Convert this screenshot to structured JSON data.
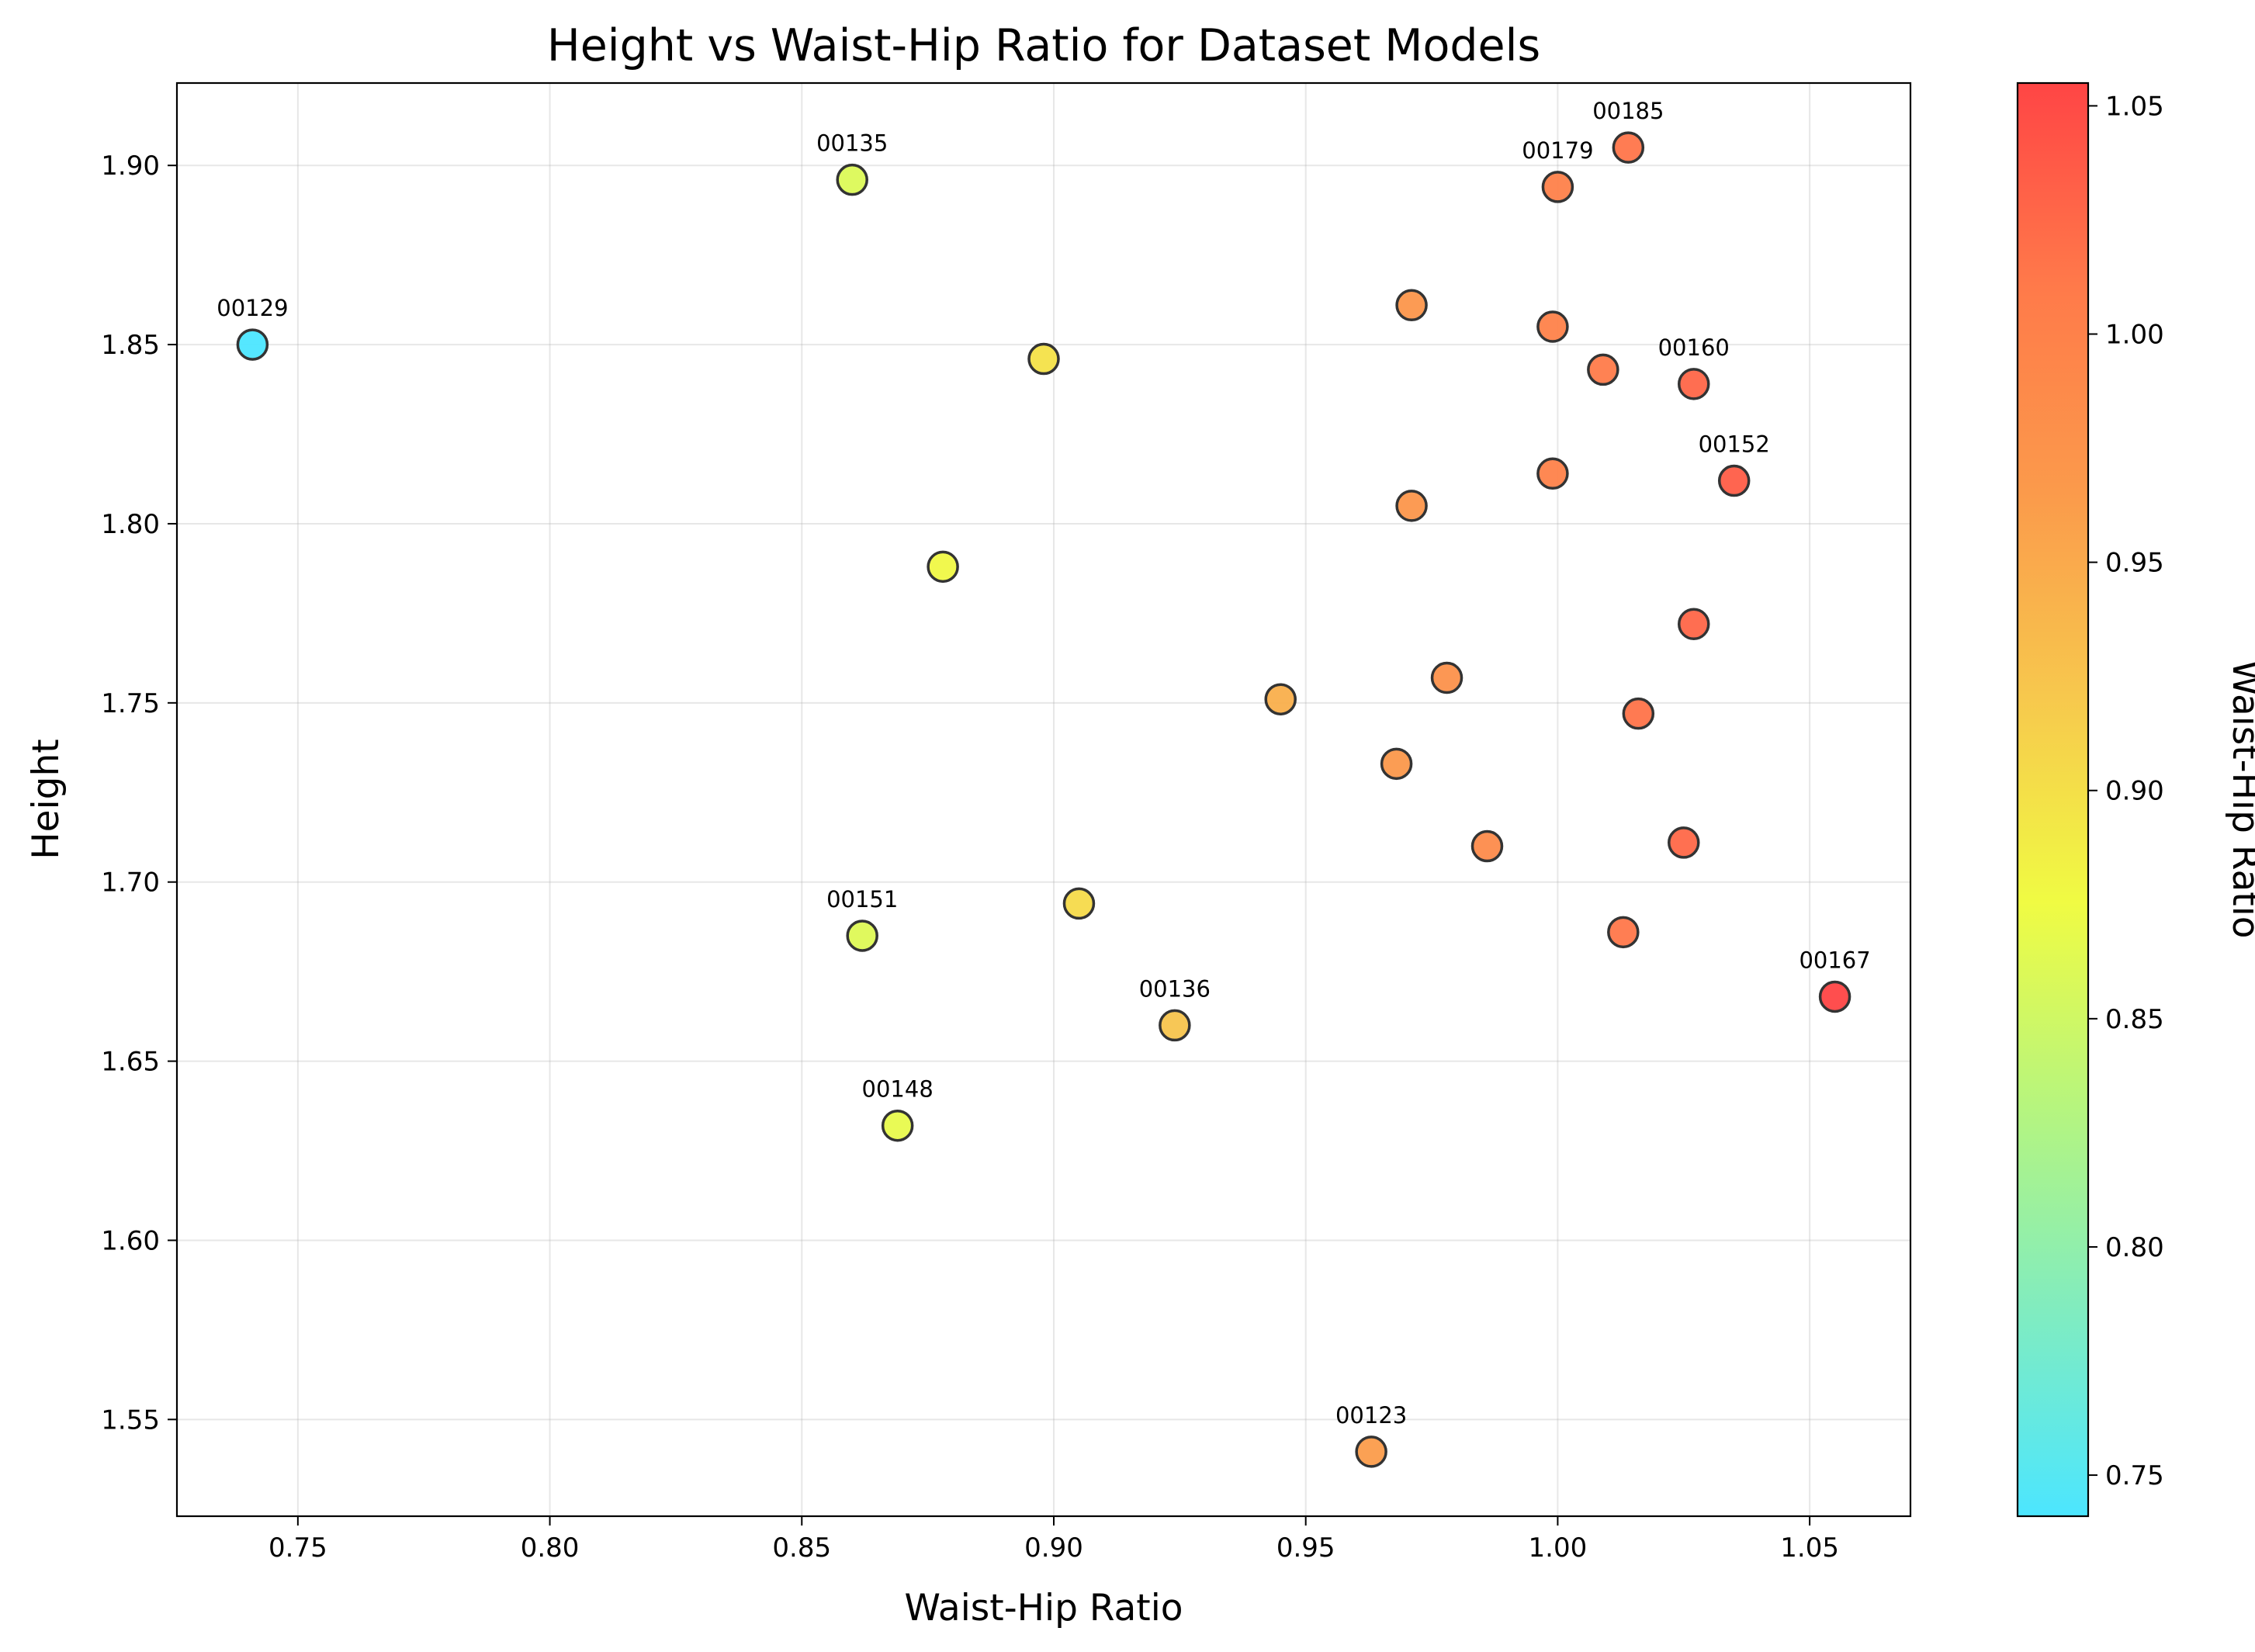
{
  "chart_data": {
    "type": "scatter",
    "title": "Height vs Waist-Hip Ratio for Dataset Models",
    "xlabel": "Waist-Hip Ratio",
    "ylabel": "Height",
    "colorbar_label": "Waist-Hip Ratio",
    "xlim": [
      0.726,
      1.07
    ],
    "ylim": [
      1.523,
      1.923
    ],
    "x_ticks": [
      "0.75",
      "0.80",
      "0.85",
      "0.90",
      "0.95",
      "1.00",
      "1.05"
    ],
    "y_ticks": [
      "1.55",
      "1.60",
      "1.65",
      "1.70",
      "1.75",
      "1.80",
      "1.85",
      "1.90"
    ],
    "colorbar_ticks": [
      "0.75",
      "0.80",
      "0.85",
      "0.90",
      "0.95",
      "1.00",
      "1.05"
    ],
    "color_range": [
      0.741,
      1.055
    ],
    "colormap_stops": [
      "#4ce6ff",
      "#80ecc0",
      "#b6f57e",
      "#f0fb43",
      "#f7c84d",
      "#fb9a4b",
      "#ff7a4a",
      "#ff4545"
    ],
    "grid": true,
    "points": [
      {
        "x": 0.741,
        "y": 1.85,
        "label": "00129"
      },
      {
        "x": 0.86,
        "y": 1.896,
        "label": "00135"
      },
      {
        "x": 1.014,
        "y": 1.905,
        "label": "00185"
      },
      {
        "x": 1.0,
        "y": 1.894,
        "label": "00179"
      },
      {
        "x": 0.971,
        "y": 1.861,
        "label": ""
      },
      {
        "x": 0.999,
        "y": 1.855,
        "label": ""
      },
      {
        "x": 0.898,
        "y": 1.846,
        "label": ""
      },
      {
        "x": 1.009,
        "y": 1.843,
        "label": ""
      },
      {
        "x": 1.027,
        "y": 1.839,
        "label": "00160"
      },
      {
        "x": 0.999,
        "y": 1.814,
        "label": ""
      },
      {
        "x": 1.035,
        "y": 1.812,
        "label": "00152"
      },
      {
        "x": 0.971,
        "y": 1.805,
        "label": ""
      },
      {
        "x": 0.878,
        "y": 1.788,
        "label": ""
      },
      {
        "x": 1.027,
        "y": 1.772,
        "label": ""
      },
      {
        "x": 0.978,
        "y": 1.757,
        "label": ""
      },
      {
        "x": 0.945,
        "y": 1.751,
        "label": ""
      },
      {
        "x": 1.016,
        "y": 1.747,
        "label": ""
      },
      {
        "x": 0.968,
        "y": 1.733,
        "label": ""
      },
      {
        "x": 1.025,
        "y": 1.711,
        "label": ""
      },
      {
        "x": 0.986,
        "y": 1.71,
        "label": ""
      },
      {
        "x": 0.905,
        "y": 1.694,
        "label": ""
      },
      {
        "x": 1.013,
        "y": 1.686,
        "label": ""
      },
      {
        "x": 0.862,
        "y": 1.685,
        "label": "00151"
      },
      {
        "x": 1.055,
        "y": 1.668,
        "label": "00167"
      },
      {
        "x": 0.924,
        "y": 1.66,
        "label": "00136"
      },
      {
        "x": 0.869,
        "y": 1.632,
        "label": "00148"
      },
      {
        "x": 0.963,
        "y": 1.541,
        "label": "00123"
      }
    ]
  }
}
